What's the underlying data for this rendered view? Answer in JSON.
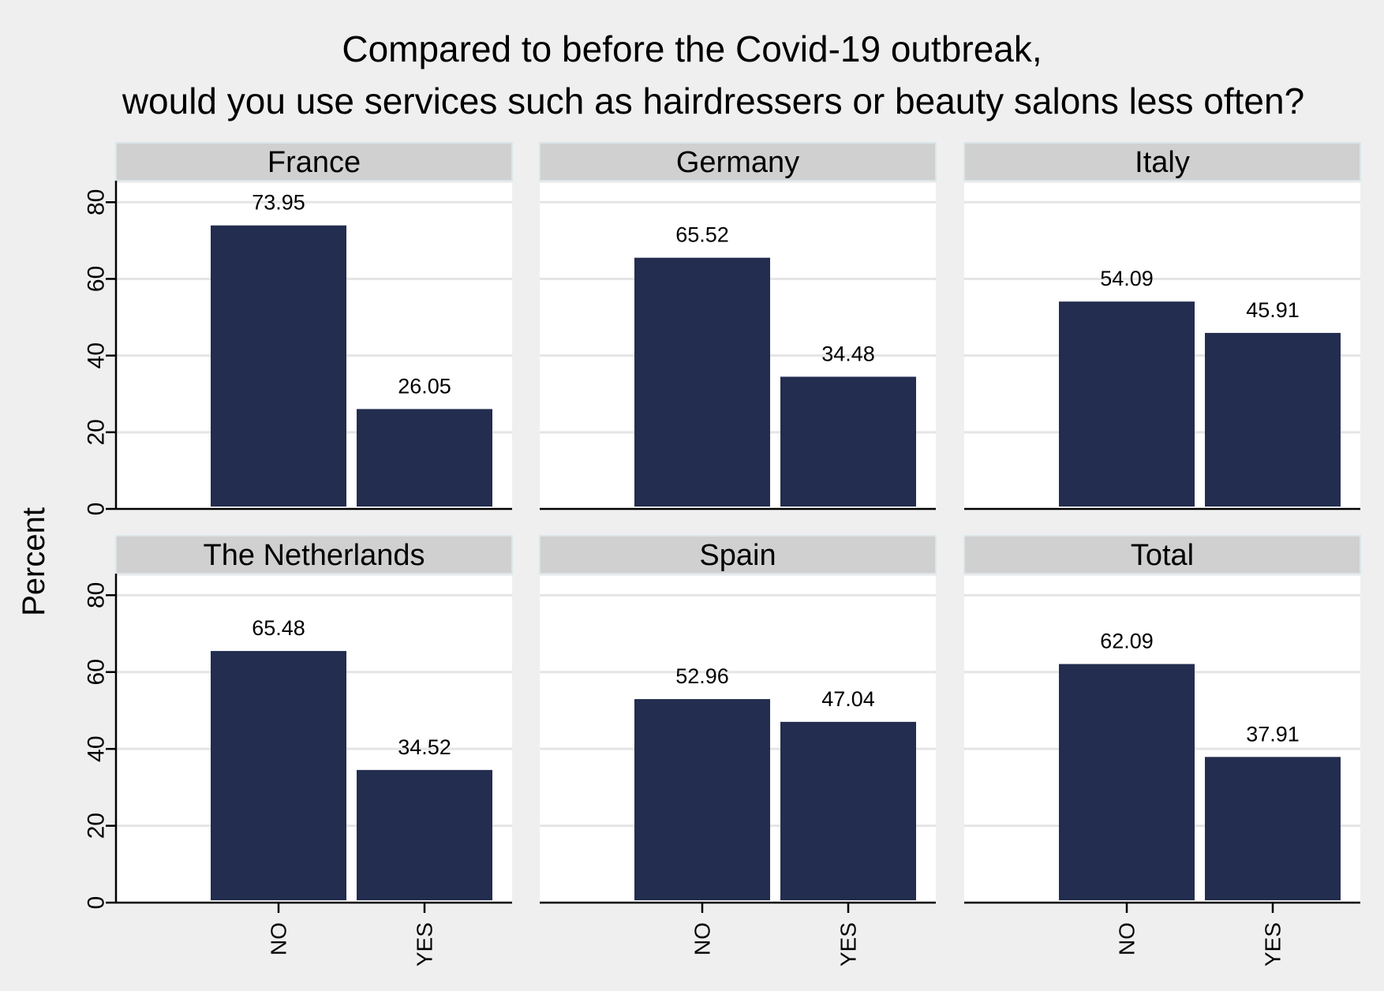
{
  "chart_data": {
    "type": "bar",
    "title_lines": [
      "Compared to before the Covid-19 outbreak,",
      "would you use services such as hairdressers or beauty salons less often?"
    ],
    "ylabel": "Percent",
    "ylim": [
      0,
      85
    ],
    "yticks": [
      "0",
      "20",
      "40",
      "60",
      "80"
    ],
    "grid": true,
    "categories": [
      "NO",
      "YES"
    ],
    "bar_color": "#222d4f",
    "panel_background": "#ffffff",
    "strip_background": "#d0d0d0",
    "page_background": "#efefef",
    "panels": [
      {
        "name": "France",
        "values": [
          73.95,
          26.05
        ],
        "labels": [
          "73.95",
          "26.05"
        ]
      },
      {
        "name": "Germany",
        "values": [
          65.52,
          34.48
        ],
        "labels": [
          "65.52",
          "34.48"
        ]
      },
      {
        "name": "Italy",
        "values": [
          54.09,
          45.91
        ],
        "labels": [
          "54.09",
          "45.91"
        ]
      },
      {
        "name": "The Netherlands",
        "values": [
          65.48,
          34.52
        ],
        "labels": [
          "65.48",
          "34.52"
        ]
      },
      {
        "name": "Spain",
        "values": [
          52.96,
          47.04
        ],
        "labels": [
          "52.96",
          "47.04"
        ]
      },
      {
        "name": "Total",
        "values": [
          62.09,
          37.91
        ],
        "labels": [
          "62.09",
          "37.91"
        ]
      }
    ]
  }
}
